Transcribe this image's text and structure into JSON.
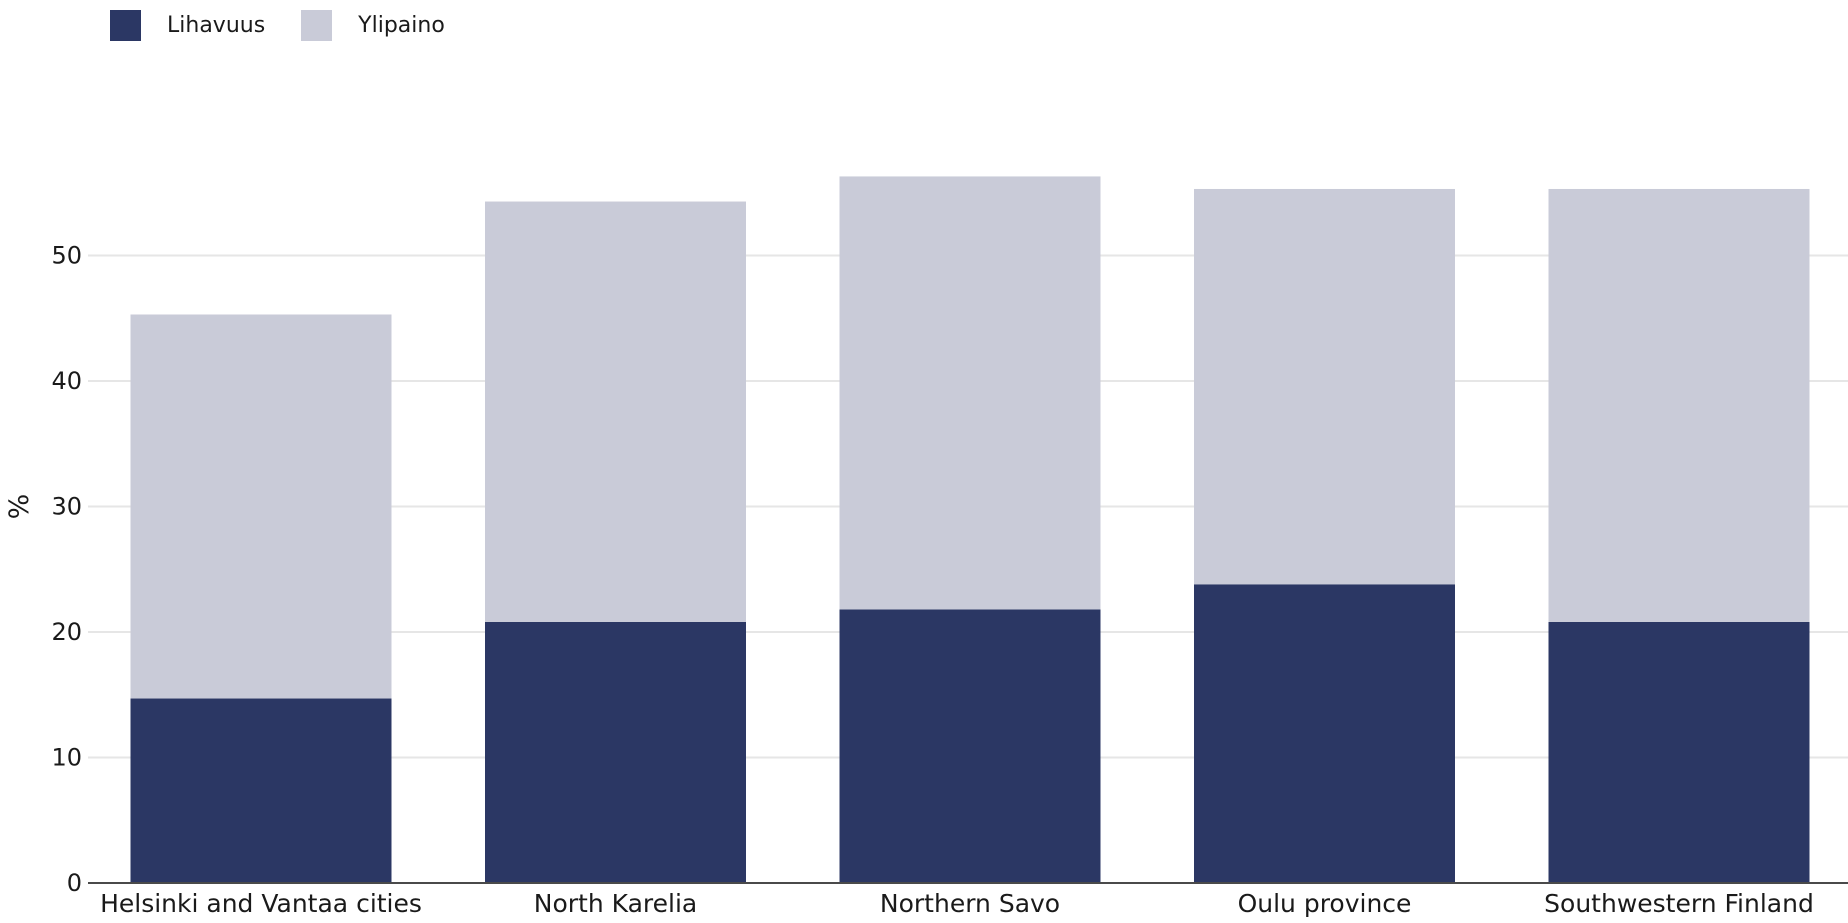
{
  "legend": {
    "series_a": "Lihavuus",
    "series_b": "Ylipaino"
  },
  "chart_data": {
    "type": "bar",
    "stacked": true,
    "categories": [
      "Helsinki and Vantaa cities",
      "North Karelia",
      "Northern Savo",
      "Oulu province",
      "Southwestern Finland"
    ],
    "series": [
      {
        "name": "Lihavuus",
        "color": "#2b3764",
        "values": [
          14.7,
          20.8,
          21.8,
          23.8,
          20.8
        ]
      },
      {
        "name": "Ylipaino",
        "color": "#c9cbd8",
        "values": [
          30.6,
          33.5,
          34.5,
          31.5,
          34.5
        ]
      }
    ],
    "ylabel": "%",
    "xlabel": "",
    "ylim": [
      0,
      60
    ],
    "yticks": [
      0,
      10,
      20,
      30,
      40,
      50
    ],
    "grid": true,
    "legend_position": "top-left"
  }
}
